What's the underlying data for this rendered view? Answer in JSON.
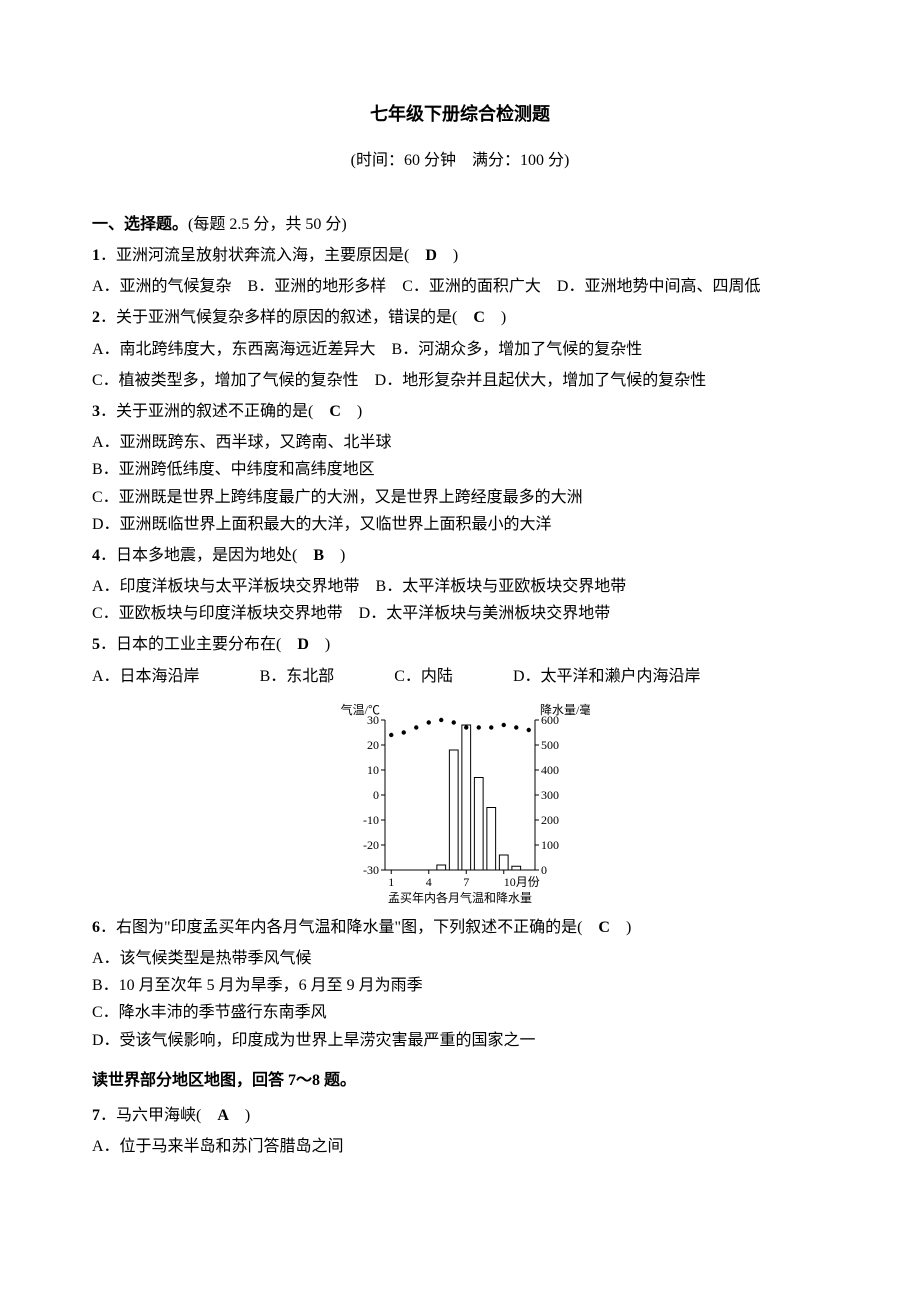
{
  "title": "七年级下册综合检测题",
  "subtitle": "(时间：60 分钟　满分：100 分)",
  "section1": {
    "heading_bold": "一、选择题。",
    "heading_rest": "(每题 2.5 分，共 50 分)"
  },
  "q1": {
    "num": "1",
    "text": "．亚洲河流呈放射状奔流入海，主要原因是(　",
    "ans": "D",
    "tail": "　)",
    "opts": "A．亚洲的气候复杂　B．亚洲的地形多样　C．亚洲的面积广大　D．亚洲地势中间高、四周低"
  },
  "q2": {
    "num": "2",
    "text": "．关于亚洲气候复杂多样的原因的叙述，错误的是(　",
    "ans": "C",
    "tail": "　)",
    "optA": "A．南北跨纬度大，东西离海远近差异大　B．河湖众多，增加了气候的复杂性",
    "optC": "C．植被类型多，增加了气候的复杂性　D．地形复杂并且起伏大，增加了气候的复杂性"
  },
  "q3": {
    "num": "3",
    "text": "．关于亚洲的叙述不正确的是(　",
    "ans": "C",
    "tail": "　)",
    "a": "A．亚洲既跨东、西半球，又跨南、北半球",
    "b": "B．亚洲跨低纬度、中纬度和高纬度地区",
    "c": "C．亚洲既是世界上跨纬度最广的大洲，又是世界上跨经度最多的大洲",
    "d": "D．亚洲既临世界上面积最大的大洋，又临世界上面积最小的大洋"
  },
  "q4": {
    "num": "4",
    "text": "．日本多地震，是因为地处(　",
    "ans": "B",
    "tail": "　)",
    "line1": "A．印度洋板块与太平洋板块交界地带　B．太平洋板块与亚欧板块交界地带",
    "line2": "C．亚欧板块与印度洋板块交界地带　D．太平洋板块与美洲板块交界地带"
  },
  "q5": {
    "num": "5",
    "text": "．日本的工业主要分布在(　",
    "ans": "D",
    "tail": "　)",
    "a": "A．日本海沿岸",
    "b": "B．东北部",
    "c": "C．内陆",
    "d": "D．太平洋和濑户内海沿岸"
  },
  "chart": {
    "left_axis_label": "气温/℃",
    "right_axis_label": "降水量/毫米",
    "caption": "孟买年内各月气温和降水量",
    "left_ticks": [
      "30",
      "20",
      "10",
      "0",
      "-10",
      "-20",
      "-30"
    ],
    "right_ticks": [
      "600",
      "500",
      "400",
      "300",
      "200",
      "100",
      "0"
    ],
    "x_ticks": [
      "1",
      "4",
      "7",
      "10月份"
    ],
    "temp_values": [
      24,
      25,
      27,
      29,
      30,
      29,
      27,
      27,
      27,
      28,
      27,
      26
    ],
    "precip_values": [
      0,
      0,
      0,
      0,
      20,
      480,
      580,
      370,
      250,
      60,
      15,
      0
    ],
    "colors": {
      "axis": "#000000",
      "bar_fill": "#ffffff",
      "bar_stroke": "#000000",
      "dot_fill": "#000000",
      "text": "#000000",
      "bg": "#ffffff"
    },
    "font_size": 12
  },
  "q6": {
    "num": "6",
    "text": "．右图为\"印度孟买年内各月气温和降水量\"图，下列叙述不正确的是(　",
    "ans": "C",
    "tail": "　)",
    "a": "A．该气候类型是热带季风气候",
    "b": "B．10 月至次年 5 月为旱季，6 月至 9 月为雨季",
    "c": "C．降水丰沛的季节盛行东南季风",
    "d": "D．受该气候影响，印度成为世界上旱涝灾害最严重的国家之一"
  },
  "instruction": "读世界部分地区地图，回答 7～8 题。",
  "q7": {
    "num": "7",
    "text": "．马六甲海峡(　",
    "ans": "A",
    "tail": "　)",
    "a": "A．位于马来半岛和苏门答腊岛之间"
  }
}
